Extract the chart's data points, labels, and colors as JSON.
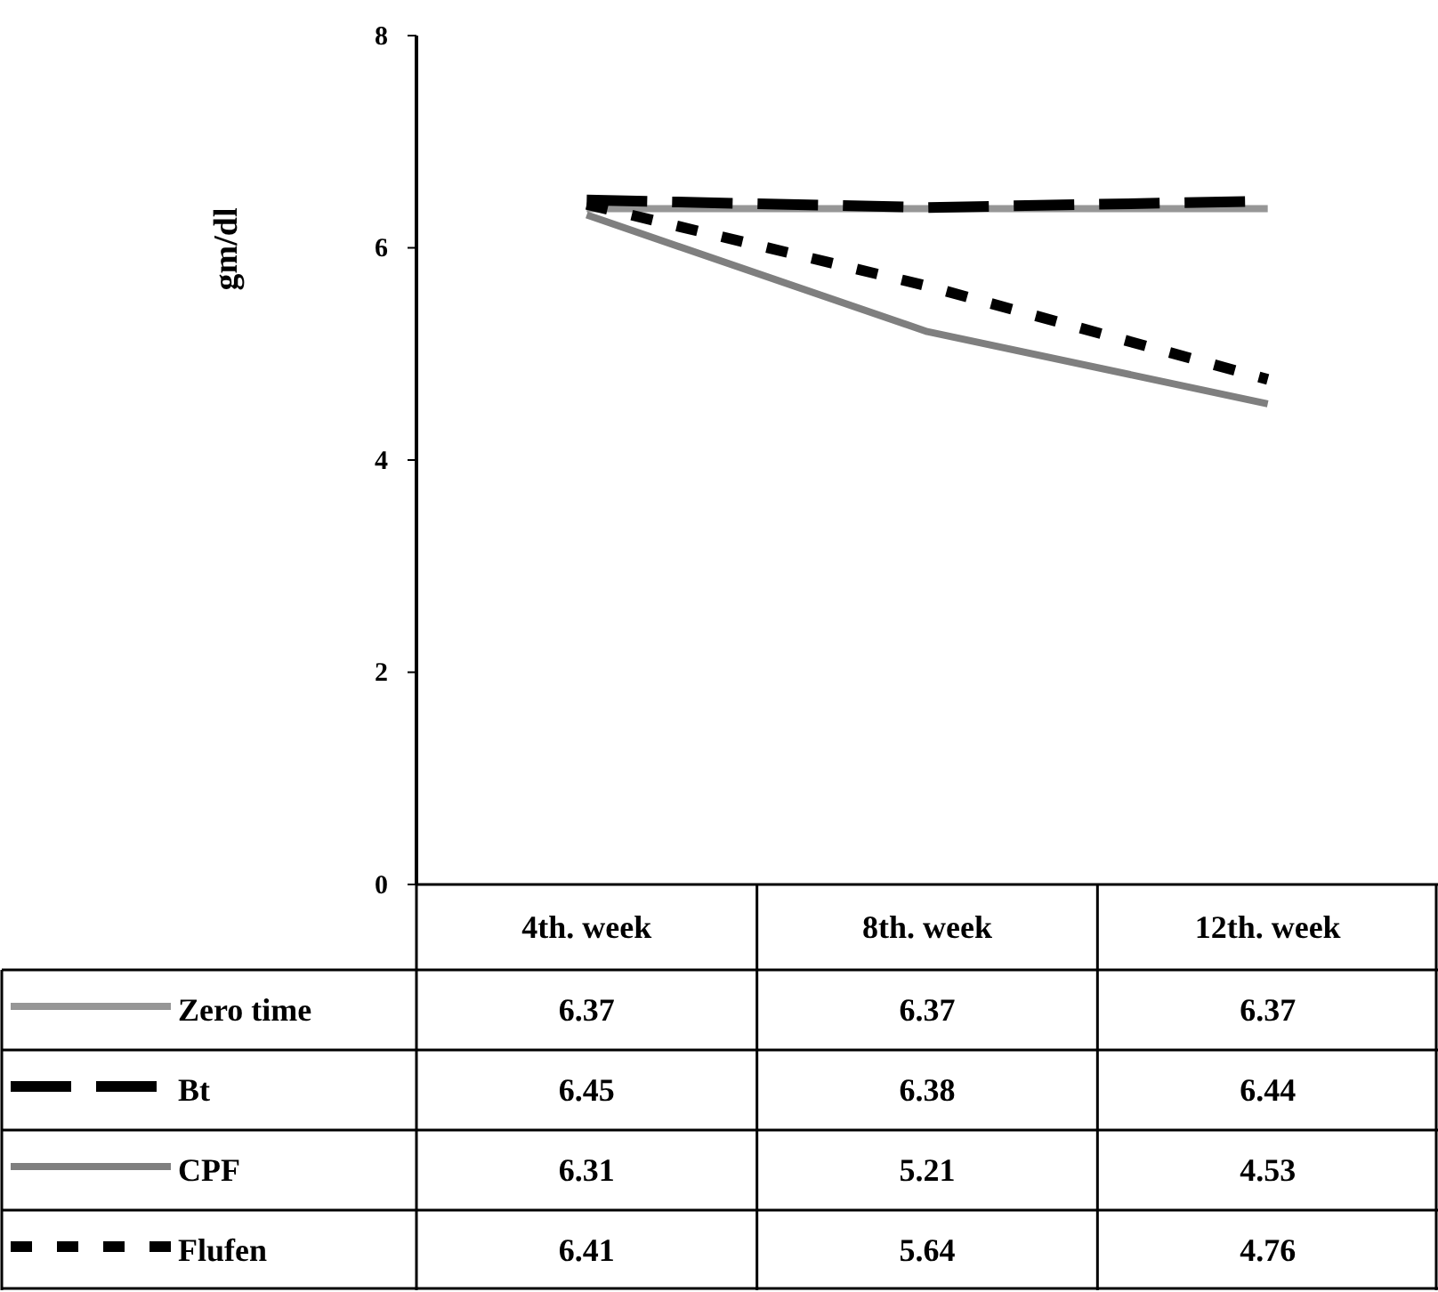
{
  "chart_data": {
    "type": "line",
    "ylabel": "gm/dl",
    "categories": [
      "4th. week",
      "8th. week",
      "12th. week"
    ],
    "ylim": [
      0,
      8
    ],
    "yticks": [
      0,
      2,
      4,
      6,
      8
    ],
    "grid": false,
    "legend": "bottom",
    "data_labels": true,
    "series": [
      {
        "name": "Zero time",
        "color": "#969696",
        "line_style": "solid",
        "values": [
          6.37,
          6.37,
          6.37
        ]
      },
      {
        "name": "Bt",
        "color": "#000000",
        "line_style": "dashed",
        "values": [
          6.45,
          6.38,
          6.44
        ]
      },
      {
        "name": "CPF",
        "color": "#7f7f7f",
        "line_style": "solid",
        "values": [
          6.31,
          5.21,
          4.53
        ]
      },
      {
        "name": "Flufen",
        "color": "#000000",
        "line_style": "dotted",
        "values": [
          6.41,
          5.64,
          4.76
        ]
      }
    ]
  }
}
